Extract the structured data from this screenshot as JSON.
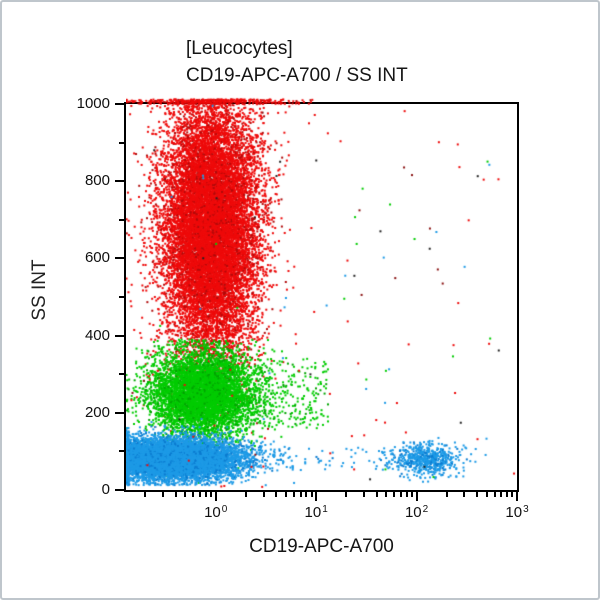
{
  "panel": {
    "background": "#ffffff",
    "border_color": "#bfc6cc"
  },
  "chart_data": {
    "type": "scatter",
    "title_line1": "[Leucocytes]",
    "title_line2": "CD19-APC-A700 / SS INT",
    "xlabel": "CD19-APC-A700",
    "ylabel": "SS INT",
    "x_scale": "log",
    "x_range_log10": [
      -0.893,
      3
    ],
    "x_major_tick_exponents": [
      0,
      1,
      2,
      3
    ],
    "x_tick_base": "10",
    "y_scale": "linear",
    "ylim": [
      0,
      1000
    ],
    "y_major_ticks": [
      0,
      200,
      400,
      600,
      800,
      1000
    ],
    "y_minor_ticks": [
      100,
      300,
      500,
      700,
      900
    ],
    "grid": false,
    "legend": "none",
    "colors": {
      "red": "#ee0a0a",
      "red_dark": "#b00a0a",
      "green": "#00cc00",
      "green_dark": "#00a400",
      "blue": "#1d9ae6",
      "blue_dark": "#0b7bd0",
      "maroon": "#8a1212",
      "black": "#222222"
    },
    "seed": 1337,
    "populations": [
      {
        "name": "red-population-upper-left",
        "shape": "gauss",
        "count": 15000,
        "x_log_mean": -0.05,
        "x_log_sd": 0.24,
        "y_mean": 680,
        "y_sd": 170,
        "y_min": 5,
        "overflow_top": 12,
        "overflow_widen": 1.6,
        "colors": [
          [
            "#ee0a0a",
            0.9
          ],
          [
            "#b00a0a",
            0.1
          ]
        ]
      },
      {
        "name": "green-population-mid-left",
        "shape": "gauss",
        "count": 6000,
        "x_log_mean": -0.13,
        "x_log_sd": 0.26,
        "y_mean": 250,
        "y_sd": 55,
        "y_max": 390,
        "y_min": 5,
        "colors": [
          [
            "#00cc00",
            0.88
          ],
          [
            "#00a400",
            0.12
          ]
        ]
      },
      {
        "name": "green-right-tail",
        "shape": "uniform",
        "count": 250,
        "x_log_min": 0.3,
        "x_log_max": 1.12,
        "y_lo": 160,
        "y_hi": 340,
        "colors": [
          [
            "#00cc00",
            0.85
          ],
          [
            "#00a400",
            0.15
          ]
        ]
      },
      {
        "name": "blue-population-bottom-left",
        "shape": "gauss",
        "count": 9500,
        "x_log_mean": -0.45,
        "x_log_sd": 0.35,
        "y_mean": 80,
        "y_sd": 26,
        "y_min": 12,
        "colors": [
          [
            "#1d9ae6",
            0.88
          ],
          [
            "#0b7bd0",
            0.12
          ]
        ]
      },
      {
        "name": "blue-bottom-bridge",
        "shape": "uniform",
        "count": 90,
        "x_log_min": 0.2,
        "x_log_max": 1.9,
        "y_lo": 50,
        "y_hi": 110,
        "colors": [
          [
            "#1d9ae6",
            0.9
          ],
          [
            "#0b7bd0",
            0.1
          ]
        ]
      },
      {
        "name": "blue-population-bottom-right",
        "shape": "gauss",
        "count": 620,
        "x_log_mean": 2.11,
        "x_log_sd": 0.16,
        "y_mean": 80,
        "y_sd": 20,
        "y_min": 12,
        "colors": [
          [
            "#1d9ae6",
            0.85
          ],
          [
            "#0b7bd0",
            0.15
          ]
        ]
      },
      {
        "name": "sparse-rare-events",
        "shape": "uniform",
        "count": 130,
        "x_log_min": -0.89,
        "x_log_max": 2.98,
        "y_lo": 5,
        "y_hi": 1000,
        "colors": [
          [
            "#ee0a0a",
            0.5
          ],
          [
            "#8a1212",
            0.15
          ],
          [
            "#222222",
            0.08
          ],
          [
            "#00cc00",
            0.13
          ],
          [
            "#1d9ae6",
            0.14
          ]
        ]
      }
    ]
  }
}
